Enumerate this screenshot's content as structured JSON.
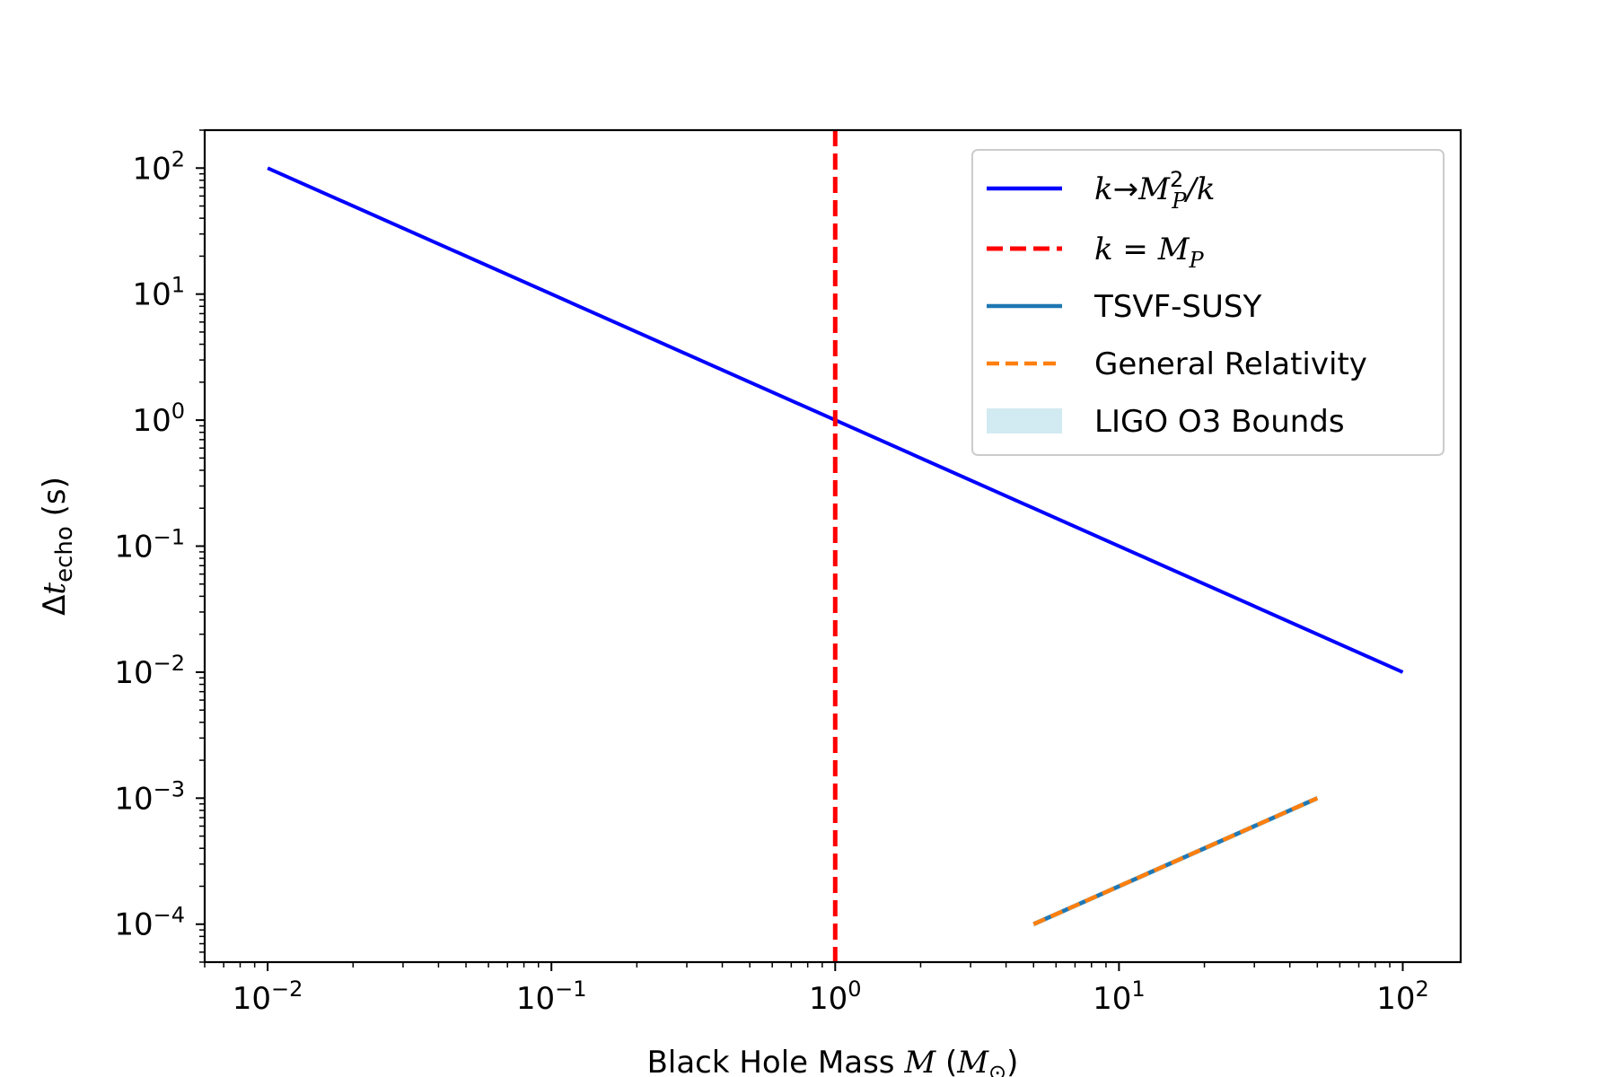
{
  "chart_data": {
    "type": "line",
    "xlabel": {
      "text": "Black Hole Mass",
      "math": "M",
      "unit_open": "(",
      "unit": "M",
      "unit_sub": "⊙",
      "unit_close": ")"
    },
    "ylabel": {
      "delta": "Δ",
      "var": "t",
      "sub": "echo",
      "unit": "(s)"
    },
    "xscale": "log",
    "yscale": "log",
    "xlim": [
      0.006,
      160
    ],
    "ylim": [
      5e-05,
      200
    ],
    "x_ticks": [
      {
        "value": 0.01,
        "base": "10",
        "exp": "−2"
      },
      {
        "value": 0.1,
        "base": "10",
        "exp": "−1"
      },
      {
        "value": 1,
        "base": "10",
        "exp": "0"
      },
      {
        "value": 10,
        "base": "10",
        "exp": "1"
      },
      {
        "value": 100,
        "base": "10",
        "exp": "2"
      }
    ],
    "y_ticks": [
      {
        "value": 0.0001,
        "base": "10",
        "exp": "−4"
      },
      {
        "value": 0.001,
        "base": "10",
        "exp": "−3"
      },
      {
        "value": 0.01,
        "base": "10",
        "exp": "−2"
      },
      {
        "value": 0.1,
        "base": "10",
        "exp": "−1"
      },
      {
        "value": 1,
        "base": "10",
        "exp": "0"
      },
      {
        "value": 10,
        "base": "10",
        "exp": "1"
      },
      {
        "value": 100,
        "base": "10",
        "exp": "2"
      }
    ],
    "grid": false,
    "legend_position": "top-right",
    "series": [
      {
        "label": {
          "k": "k",
          "arrow": "→",
          "M": "M",
          "sup": "2",
          "sub": "P",
          "slash": "/k"
        },
        "style": "solid",
        "color": "#0000ff",
        "x": [
          0.01,
          100
        ],
        "y": [
          100,
          0.01
        ]
      },
      {
        "label": {
          "k": "k",
          "eq": " = ",
          "M": "M",
          "sub": "P"
        },
        "style": "dashed",
        "color": "#ff0000",
        "orientation": "vertical",
        "x_value": 1
      },
      {
        "label": "TSVF-SUSY",
        "style": "solid",
        "color": "#1f77b4",
        "x": [
          5,
          50
        ],
        "y": [
          0.0001,
          0.001
        ]
      },
      {
        "label": "General Relativity",
        "style": "dashed",
        "color": "#ff7f0e",
        "x": [
          5,
          50
        ],
        "y": [
          0.0001,
          0.001
        ]
      },
      {
        "label": "LIGO O3 Bounds",
        "style": "band",
        "color": "#add8e6",
        "x": [
          5,
          50
        ],
        "y_low": [
          9.5e-05,
          0.00095
        ],
        "y_high": [
          0.000105,
          0.00105
        ]
      }
    ]
  }
}
